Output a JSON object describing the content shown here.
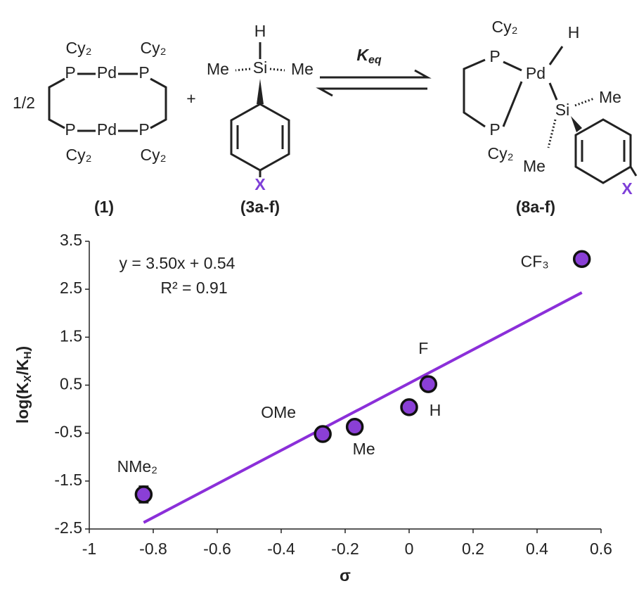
{
  "scheme": {
    "compound_1": {
      "cy": [
        "Cy₂",
        "Cy₂",
        "Cy₂",
        "Cy₂"
      ],
      "atoms": [
        "P",
        "Pd",
        "P",
        "P",
        "Pd",
        "P"
      ],
      "fraction": "1/2",
      "label": "(1)"
    },
    "plus": "+",
    "compound_3": {
      "h": "H",
      "si": "Si",
      "me": [
        "Me",
        "Me"
      ],
      "x": "X",
      "label": "(3a-f)"
    },
    "arrow": {
      "k": "K",
      "k_sub": "eq"
    },
    "compound_8": {
      "cy": [
        "Cy₂",
        "Cy₂"
      ],
      "p": [
        "P",
        "P"
      ],
      "pd": "Pd",
      "h": "H",
      "si": "Si",
      "me": [
        "Me",
        "Me"
      ],
      "x": "X",
      "label": "(8a-f)"
    }
  },
  "chart_data": {
    "type": "scatter",
    "equation": "y = 3.50x + 0.54",
    "r_squared": "R² = 0.91",
    "xlabel": "σ",
    "ylabel": [
      "log(K",
      "X",
      "/K",
      "H",
      ")"
    ],
    "x": [
      -0.83,
      -0.27,
      -0.17,
      0,
      0.06,
      0.54
    ],
    "y": [
      -1.78,
      -0.52,
      -0.37,
      0.04,
      0.52,
      3.13
    ],
    "errors": [
      0.17,
      0.12,
      null,
      null,
      null,
      null
    ],
    "point_labels": [
      "NMe₂",
      "OMe",
      "Me",
      "H",
      "F",
      "CF₃"
    ],
    "color": "#8a3fd6",
    "label_color": "#a27be0",
    "trendline": {
      "x": [
        -0.83,
        0.54
      ],
      "y": [
        -2.365,
        2.43
      ],
      "color": "#8b2fd9"
    },
    "xlim": [
      -1,
      0.6
    ],
    "xticks": [
      -1,
      -0.8,
      -0.6,
      -0.4,
      -0.2,
      0,
      0.2,
      0.4,
      0.6
    ],
    "ylim": [
      -2.5,
      3.5
    ],
    "yticks": [
      3.5,
      2.5,
      1.5,
      0.5,
      -0.5,
      -1.5,
      -2.5
    ],
    "grid": false
  }
}
